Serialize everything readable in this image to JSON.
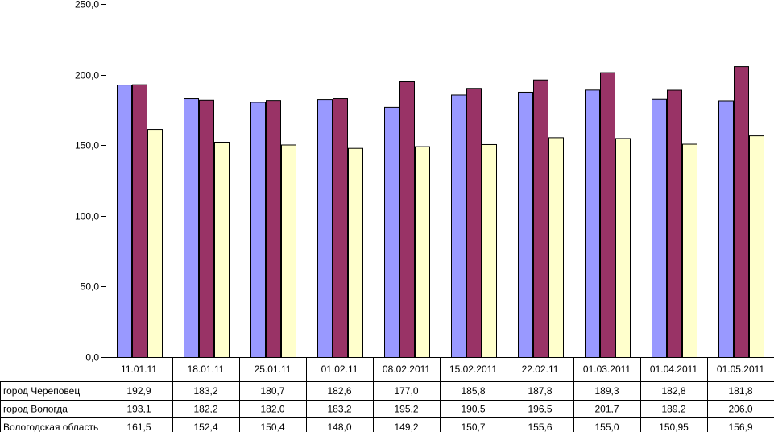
{
  "chart_data": {
    "type": "bar",
    "categories": [
      "11.01.11",
      "18.01.11",
      "25.01.11",
      "01.02.11",
      "08.02.2011",
      "15.02.2011",
      "22.02.11",
      "01.03.2011",
      "01.04.2011",
      "01.05.2011"
    ],
    "series": [
      {
        "name": "город Череповец",
        "values": [
          192.9,
          183.2,
          180.7,
          182.6,
          177.0,
          185.8,
          187.8,
          189.3,
          182.8,
          181.8
        ],
        "labels": [
          "192,9",
          "183,2",
          "180,7",
          "182,6",
          "177,0",
          "185,8",
          "187,8",
          "189,3",
          "182,8",
          "181,8"
        ],
        "color": "#9999ff"
      },
      {
        "name": "город Вологда",
        "values": [
          193.1,
          182.2,
          182.0,
          183.2,
          195.2,
          190.5,
          196.5,
          201.7,
          189.2,
          206.0
        ],
        "labels": [
          "193,1",
          "182,2",
          "182,0",
          "183,2",
          "195,2",
          "190,5",
          "196,5",
          "201,7",
          "189,2",
          "206,0"
        ],
        "color": "#993366"
      },
      {
        "name": "Вологодская область",
        "values": [
          161.5,
          152.4,
          150.4,
          148.0,
          149.2,
          150.7,
          155.6,
          155.0,
          150.95,
          156.9
        ],
        "labels": [
          "161,5",
          "152,4",
          "150,4",
          "148,0",
          "149,2",
          "150,7",
          "155,6",
          "155,0",
          "150,95",
          "156,9"
        ],
        "color": "#ffffcc"
      }
    ],
    "ylim": [
      0,
      250
    ],
    "yticks": [
      0,
      50,
      100,
      150,
      200,
      250
    ],
    "ytick_labels": [
      "0,0",
      "50,0",
      "100,0",
      "150,0",
      "200,0",
      "250,0"
    ],
    "grid": false,
    "legend": "data table below the chart"
  }
}
